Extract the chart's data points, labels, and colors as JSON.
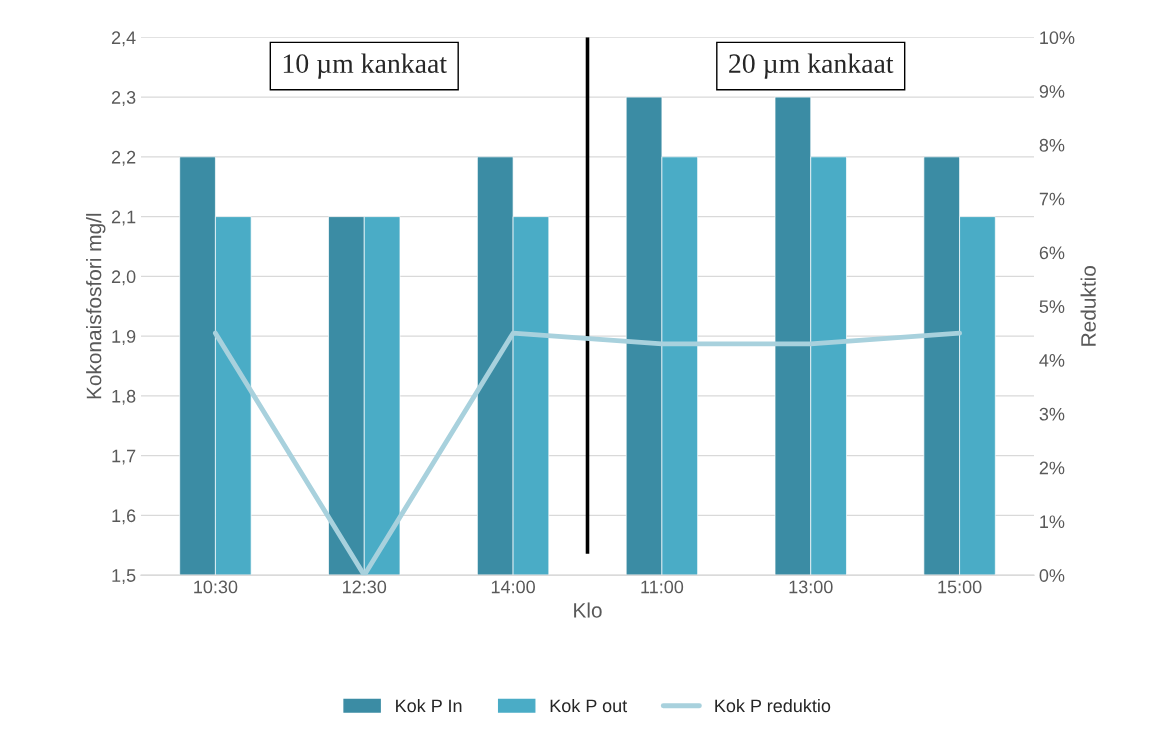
{
  "chart_data": {
    "type": "bar",
    "categories": [
      "10:30",
      "12:30",
      "14:00",
      "11:00",
      "13:00",
      "15:00"
    ],
    "series": [
      {
        "name": "Kok P In",
        "color": "#3b8ca4",
        "values": [
          2.2,
          2.1,
          2.2,
          2.3,
          2.3,
          2.2
        ]
      },
      {
        "name": "Kok P out",
        "color": "#4aacc6",
        "values": [
          2.1,
          2.1,
          2.1,
          2.2,
          2.2,
          2.1
        ]
      },
      {
        "name": "Kok P reduktio",
        "type": "line",
        "axis": "y2",
        "color": "#a8d1dd",
        "marker": "none",
        "line_style": "solid",
        "values": [
          4.5,
          0,
          4.5,
          4.3,
          4.3,
          4.5
        ]
      }
    ],
    "xlabel": "Klo",
    "ylabel": "Kokonaisfosfori mg/l",
    "y2label": "Reduktio",
    "ylim": [
      1.5,
      2.4
    ],
    "yticks": [
      {
        "value": 1.5,
        "label": "1,5"
      },
      {
        "value": 1.6,
        "label": "1,6"
      },
      {
        "value": 1.7,
        "label": "1,7"
      },
      {
        "value": 1.8,
        "label": "1,8"
      },
      {
        "value": 1.9,
        "label": "1,9"
      },
      {
        "value": 2.0,
        "label": "2,0"
      },
      {
        "value": 2.1,
        "label": "2,1"
      },
      {
        "value": 2.2,
        "label": "2,2"
      },
      {
        "value": 2.3,
        "label": "2,3"
      },
      {
        "value": 2.4,
        "label": "2,4"
      }
    ],
    "y2lim": [
      0,
      10
    ],
    "y2ticks": [
      {
        "value": 0,
        "label": "0%"
      },
      {
        "value": 1,
        "label": "1%"
      },
      {
        "value": 2,
        "label": "2%"
      },
      {
        "value": 3,
        "label": "3%"
      },
      {
        "value": 4,
        "label": "4%"
      },
      {
        "value": 5,
        "label": "5%"
      },
      {
        "value": 6,
        "label": "6%"
      },
      {
        "value": 7,
        "label": "7%"
      },
      {
        "value": 8,
        "label": "8%"
      },
      {
        "value": 9,
        "label": "9%"
      },
      {
        "value": 10,
        "label": "10%"
      }
    ],
    "annotations": [
      "10 µm kankaat",
      "20 µm kankaat"
    ],
    "grid": "y",
    "legend": "bottom"
  }
}
